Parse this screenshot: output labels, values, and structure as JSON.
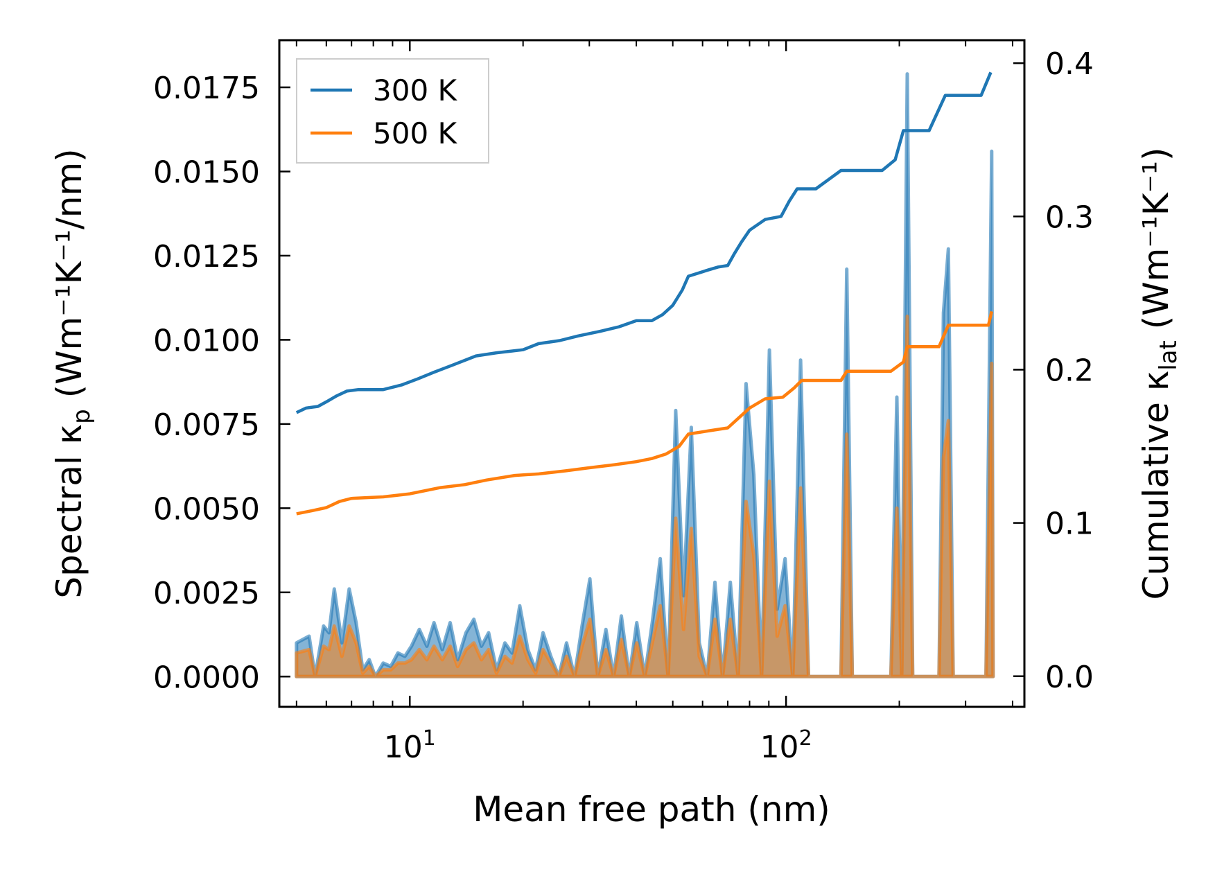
{
  "chart_data": {
    "type": "line",
    "xlabel": "Mean free path (nm)",
    "xscale": "log",
    "xlim": [
      4.5,
      430
    ],
    "x_ticks": [
      {
        "value": 10,
        "base": "10",
        "exp": "1"
      },
      {
        "value": 100,
        "base": "10",
        "exp": "2"
      }
    ],
    "y_left": {
      "label_main": "Spectral κ",
      "label_sub": "p",
      "label_units": " (Wm⁻¹K⁻¹/nm)",
      "lim": [
        -0.0009,
        0.0189
      ],
      "ticks": [
        0.0,
        0.0025,
        0.005,
        0.0075,
        0.01,
        0.0125,
        0.015,
        0.0175
      ],
      "tick_labels": [
        "0.0000",
        "0.0025",
        "0.0050",
        "0.0075",
        "0.0100",
        "0.0125",
        "0.0150",
        "0.0175"
      ]
    },
    "y_right": {
      "label_main": "Cumulative κ",
      "label_sub": "lat",
      "label_units": " (Wm⁻¹K⁻¹)",
      "lim": [
        -0.02,
        0.415
      ],
      "ticks": [
        0.0,
        0.1,
        0.2,
        0.3,
        0.4
      ],
      "tick_labels": [
        "0.0",
        "0.1",
        "0.2",
        "0.3",
        "0.4"
      ]
    },
    "legend": {
      "position": "top-left",
      "entries": [
        {
          "label": "300 K",
          "color": "#1f77b4"
        },
        {
          "label": "500 K",
          "color": "#ff7f0e"
        }
      ]
    },
    "series": [
      {
        "name": "300 K",
        "color": "#1f77b4",
        "cumulative": [
          [
            5.0,
            0.172
          ],
          [
            5.3,
            0.175
          ],
          [
            5.7,
            0.176
          ],
          [
            6.0,
            0.179
          ],
          [
            6.4,
            0.183
          ],
          [
            6.8,
            0.186
          ],
          [
            7.3,
            0.187
          ],
          [
            8.5,
            0.187
          ],
          [
            9.5,
            0.19
          ],
          [
            10.5,
            0.194
          ],
          [
            11.5,
            0.198
          ],
          [
            13.0,
            0.203
          ],
          [
            15.0,
            0.209
          ],
          [
            17.0,
            0.211
          ],
          [
            20.0,
            0.213
          ],
          [
            22.0,
            0.217
          ],
          [
            25.0,
            0.219
          ],
          [
            28.0,
            0.222
          ],
          [
            32.0,
            0.225
          ],
          [
            36.0,
            0.228
          ],
          [
            40.0,
            0.232
          ],
          [
            44.0,
            0.232
          ],
          [
            47.0,
            0.236
          ],
          [
            50.0,
            0.242
          ],
          [
            53.0,
            0.252
          ],
          [
            55.0,
            0.261
          ],
          [
            62.0,
            0.265
          ],
          [
            66.0,
            0.267
          ],
          [
            70.0,
            0.268
          ],
          [
            73.0,
            0.276
          ],
          [
            76.0,
            0.283
          ],
          [
            80.0,
            0.291
          ],
          [
            88.0,
            0.298
          ],
          [
            97.0,
            0.3
          ],
          [
            102.0,
            0.31
          ],
          [
            107.0,
            0.318
          ],
          [
            120.0,
            0.318
          ],
          [
            140.0,
            0.33
          ],
          [
            180.0,
            0.33
          ],
          [
            195.0,
            0.337
          ],
          [
            205.0,
            0.356
          ],
          [
            240.0,
            0.356
          ],
          [
            265.0,
            0.379
          ],
          [
            330.0,
            0.379
          ],
          [
            350.0,
            0.394
          ]
        ],
        "spectral": [
          [
            5.0,
            0.001
          ],
          [
            5.4,
            0.0012
          ],
          [
            5.6,
            0.0
          ],
          [
            5.9,
            0.0015
          ],
          [
            6.1,
            0.0013
          ],
          [
            6.3,
            0.0026
          ],
          [
            6.6,
            0.001
          ],
          [
            6.9,
            0.0026
          ],
          [
            7.2,
            0.0016
          ],
          [
            7.5,
            0.0002
          ],
          [
            7.8,
            0.0005
          ],
          [
            8.1,
            0.0
          ],
          [
            8.5,
            0.0004
          ],
          [
            8.9,
            0.0003
          ],
          [
            9.3,
            0.0007
          ],
          [
            9.7,
            0.0006
          ],
          [
            10.1,
            0.0009
          ],
          [
            10.6,
            0.0014
          ],
          [
            11.1,
            0.0009
          ],
          [
            11.6,
            0.0016
          ],
          [
            12.2,
            0.0008
          ],
          [
            12.8,
            0.0016
          ],
          [
            13.4,
            0.0005
          ],
          [
            14.1,
            0.0013
          ],
          [
            14.8,
            0.0017
          ],
          [
            15.5,
            0.0009
          ],
          [
            16.2,
            0.0013
          ],
          [
            17.0,
            0.0002
          ],
          [
            17.9,
            0.001
          ],
          [
            18.7,
            0.0007
          ],
          [
            19.6,
            0.0021
          ],
          [
            20.6,
            0.0008
          ],
          [
            21.6,
            0.0002
          ],
          [
            22.6,
            0.0013
          ],
          [
            23.7,
            0.0006
          ],
          [
            24.9,
            0.0
          ],
          [
            26.1,
            0.001
          ],
          [
            27.4,
            0.0
          ],
          [
            28.7,
            0.0015
          ],
          [
            30.1,
            0.0029
          ],
          [
            31.6,
            0.0
          ],
          [
            33.2,
            0.0014
          ],
          [
            34.8,
            0.0
          ],
          [
            36.5,
            0.0018
          ],
          [
            38.3,
            0.0
          ],
          [
            40.1,
            0.0016
          ],
          [
            42.1,
            0.0
          ],
          [
            44.1,
            0.0016
          ],
          [
            46.3,
            0.0035
          ],
          [
            48.6,
            0.0
          ],
          [
            50.9,
            0.0079
          ],
          [
            53.4,
            0.0024
          ],
          [
            56.0,
            0.0074
          ],
          [
            58.8,
            0.001
          ],
          [
            61.7,
            0.0
          ],
          [
            64.7,
            0.0028
          ],
          [
            67.8,
            0.0
          ],
          [
            71.1,
            0.0028
          ],
          [
            74.6,
            0.0
          ],
          [
            78.3,
            0.0087
          ],
          [
            82.1,
            0.006
          ],
          [
            86.1,
            0.0
          ],
          [
            90.3,
            0.0097
          ],
          [
            94.7,
            0.002
          ],
          [
            99.4,
            0.0035
          ],
          [
            104.2,
            0.0
          ],
          [
            109.3,
            0.0094
          ],
          [
            114.7,
            0.0
          ],
          [
            120.3,
            0.0
          ],
          [
            140.0,
            0.0
          ],
          [
            145.0,
            0.0121
          ],
          [
            150.0,
            0.0
          ],
          [
            190.0,
            0.0
          ],
          [
            197.0,
            0.0083
          ],
          [
            203.0,
            0.0
          ],
          [
            210.0,
            0.0179
          ],
          [
            217.0,
            0.0
          ],
          [
            255.0,
            0.0
          ],
          [
            262.0,
            0.0108
          ],
          [
            270.0,
            0.0127
          ],
          [
            278.0,
            0.0
          ],
          [
            340.0,
            0.0
          ],
          [
            352.0,
            0.0156
          ],
          [
            355.0,
            0.0
          ]
        ]
      },
      {
        "name": "500 K",
        "color": "#ff7f0e",
        "cumulative": [
          [
            5.0,
            0.106
          ],
          [
            5.5,
            0.108
          ],
          [
            6.0,
            0.11
          ],
          [
            6.5,
            0.114
          ],
          [
            7.0,
            0.116
          ],
          [
            8.5,
            0.117
          ],
          [
            10.0,
            0.119
          ],
          [
            12.0,
            0.123
          ],
          [
            14.0,
            0.125
          ],
          [
            16.0,
            0.128
          ],
          [
            19.0,
            0.131
          ],
          [
            22.0,
            0.132
          ],
          [
            26.0,
            0.134
          ],
          [
            30.0,
            0.136
          ],
          [
            35.0,
            0.138
          ],
          [
            40.0,
            0.14
          ],
          [
            44.0,
            0.142
          ],
          [
            48.0,
            0.145
          ],
          [
            52.0,
            0.15
          ],
          [
            55.0,
            0.158
          ],
          [
            62.0,
            0.16
          ],
          [
            70.0,
            0.162
          ],
          [
            76.0,
            0.17
          ],
          [
            80.0,
            0.175
          ],
          [
            88.0,
            0.181
          ],
          [
            98.0,
            0.182
          ],
          [
            105.0,
            0.188
          ],
          [
            110.0,
            0.193
          ],
          [
            140.0,
            0.193
          ],
          [
            145.0,
            0.199
          ],
          [
            190.0,
            0.199
          ],
          [
            205.0,
            0.205
          ],
          [
            210.0,
            0.215
          ],
          [
            255.0,
            0.215
          ],
          [
            270.0,
            0.229
          ],
          [
            345.0,
            0.229
          ],
          [
            352.0,
            0.238
          ]
        ],
        "spectral": [
          [
            5.0,
            0.0007
          ],
          [
            5.4,
            0.0008
          ],
          [
            5.6,
            0.0
          ],
          [
            5.9,
            0.0009
          ],
          [
            6.1,
            0.0008
          ],
          [
            6.3,
            0.0015
          ],
          [
            6.6,
            0.0006
          ],
          [
            6.9,
            0.0015
          ],
          [
            7.2,
            0.001
          ],
          [
            7.5,
            0.0001
          ],
          [
            7.8,
            0.0003
          ],
          [
            8.1,
            0.0
          ],
          [
            8.5,
            0.0002
          ],
          [
            8.9,
            0.0002
          ],
          [
            9.3,
            0.0004
          ],
          [
            9.7,
            0.0004
          ],
          [
            10.1,
            0.0005
          ],
          [
            10.6,
            0.0008
          ],
          [
            11.1,
            0.0005
          ],
          [
            11.6,
            0.0009
          ],
          [
            12.2,
            0.0005
          ],
          [
            12.8,
            0.0009
          ],
          [
            13.4,
            0.0003
          ],
          [
            14.1,
            0.0008
          ],
          [
            14.8,
            0.001
          ],
          [
            15.5,
            0.0005
          ],
          [
            16.2,
            0.0008
          ],
          [
            17.0,
            0.0001
          ],
          [
            17.9,
            0.0006
          ],
          [
            18.7,
            0.0004
          ],
          [
            19.6,
            0.0012
          ],
          [
            20.6,
            0.0005
          ],
          [
            21.6,
            0.0001
          ],
          [
            22.6,
            0.0008
          ],
          [
            23.7,
            0.0004
          ],
          [
            24.9,
            0.0
          ],
          [
            26.1,
            0.0006
          ],
          [
            27.4,
            0.0
          ],
          [
            28.7,
            0.0009
          ],
          [
            30.1,
            0.0017
          ],
          [
            31.6,
            0.0
          ],
          [
            33.2,
            0.0008
          ],
          [
            34.8,
            0.0
          ],
          [
            36.5,
            0.0011
          ],
          [
            38.3,
            0.0
          ],
          [
            40.1,
            0.001
          ],
          [
            42.1,
            0.0
          ],
          [
            44.1,
            0.001
          ],
          [
            46.3,
            0.0021
          ],
          [
            48.6,
            0.0
          ],
          [
            50.9,
            0.0047
          ],
          [
            53.4,
            0.0014
          ],
          [
            56.0,
            0.0044
          ],
          [
            58.8,
            0.0006
          ],
          [
            61.7,
            0.0
          ],
          [
            64.7,
            0.0017
          ],
          [
            67.8,
            0.0
          ],
          [
            71.1,
            0.0017
          ],
          [
            74.6,
            0.0
          ],
          [
            78.3,
            0.0052
          ],
          [
            82.1,
            0.0036
          ],
          [
            86.1,
            0.0
          ],
          [
            90.3,
            0.0058
          ],
          [
            94.7,
            0.0012
          ],
          [
            99.4,
            0.0021
          ],
          [
            104.2,
            0.0
          ],
          [
            109.3,
            0.0056
          ],
          [
            114.7,
            0.0
          ],
          [
            120.3,
            0.0
          ],
          [
            140.0,
            0.0
          ],
          [
            145.0,
            0.0072
          ],
          [
            150.0,
            0.0
          ],
          [
            190.0,
            0.0
          ],
          [
            197.0,
            0.005
          ],
          [
            203.0,
            0.0
          ],
          [
            210.0,
            0.0107
          ],
          [
            217.0,
            0.0
          ],
          [
            255.0,
            0.0
          ],
          [
            262.0,
            0.0065
          ],
          [
            270.0,
            0.0076
          ],
          [
            278.0,
            0.0
          ],
          [
            340.0,
            0.0
          ],
          [
            352.0,
            0.0093
          ],
          [
            355.0,
            0.0
          ]
        ]
      }
    ]
  }
}
